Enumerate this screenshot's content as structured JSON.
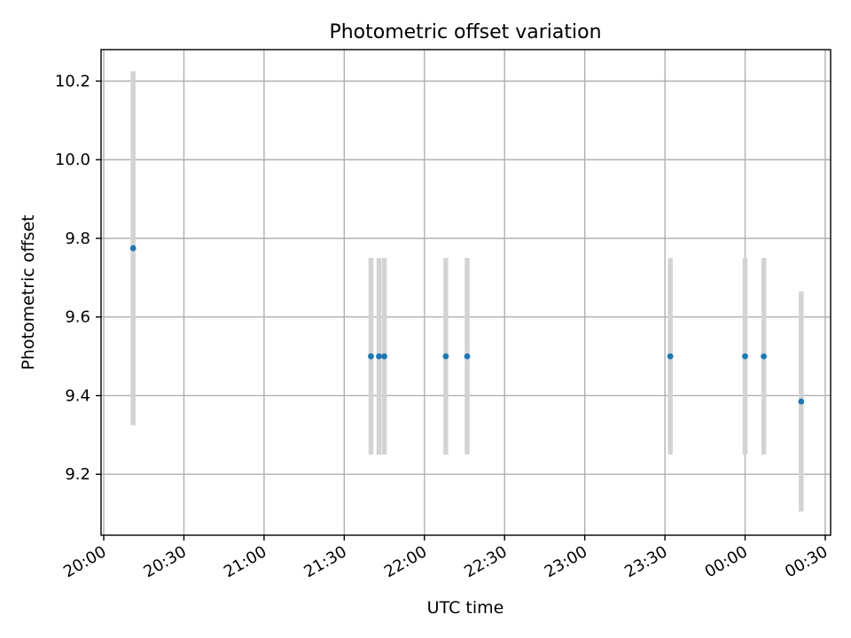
{
  "chart_data": {
    "type": "scatter",
    "title": "Photometric offset variation",
    "xlabel": "UTC time",
    "ylabel": "Photometric offset",
    "x_axis_type": "time",
    "x_ticks": [
      "20:00",
      "20:30",
      "21:00",
      "21:30",
      "22:00",
      "22:30",
      "23:00",
      "23:30",
      "00:00",
      "00:30"
    ],
    "y_ticks": [
      "9.2",
      "9.4",
      "9.6",
      "9.8",
      "10.0",
      "10.2"
    ],
    "xlim": [
      "19:59",
      "00:32"
    ],
    "ylim": [
      9.045,
      10.28
    ],
    "grid": true,
    "marker_color": "#1f77b4",
    "errorbar_color": "#d3d3d3",
    "points": [
      {
        "x": "20:11",
        "y": 9.775,
        "ylow": 9.325,
        "yhigh": 10.225
      },
      {
        "x": "21:40",
        "y": 9.5,
        "ylow": 9.25,
        "yhigh": 9.75
      },
      {
        "x": "21:43",
        "y": 9.5,
        "ylow": 9.25,
        "yhigh": 9.75
      },
      {
        "x": "21:45",
        "y": 9.5,
        "ylow": 9.25,
        "yhigh": 9.75
      },
      {
        "x": "22:08",
        "y": 9.5,
        "ylow": 9.25,
        "yhigh": 9.75
      },
      {
        "x": "22:16",
        "y": 9.5,
        "ylow": 9.25,
        "yhigh": 9.75
      },
      {
        "x": "23:32",
        "y": 9.5,
        "ylow": 9.25,
        "yhigh": 9.75
      },
      {
        "x": "00:00",
        "y": 9.5,
        "ylow": 9.25,
        "yhigh": 9.75
      },
      {
        "x": "00:07",
        "y": 9.5,
        "ylow": 9.25,
        "yhigh": 9.75
      },
      {
        "x": "00:21",
        "y": 9.385,
        "ylow": 9.105,
        "yhigh": 9.665
      }
    ]
  }
}
